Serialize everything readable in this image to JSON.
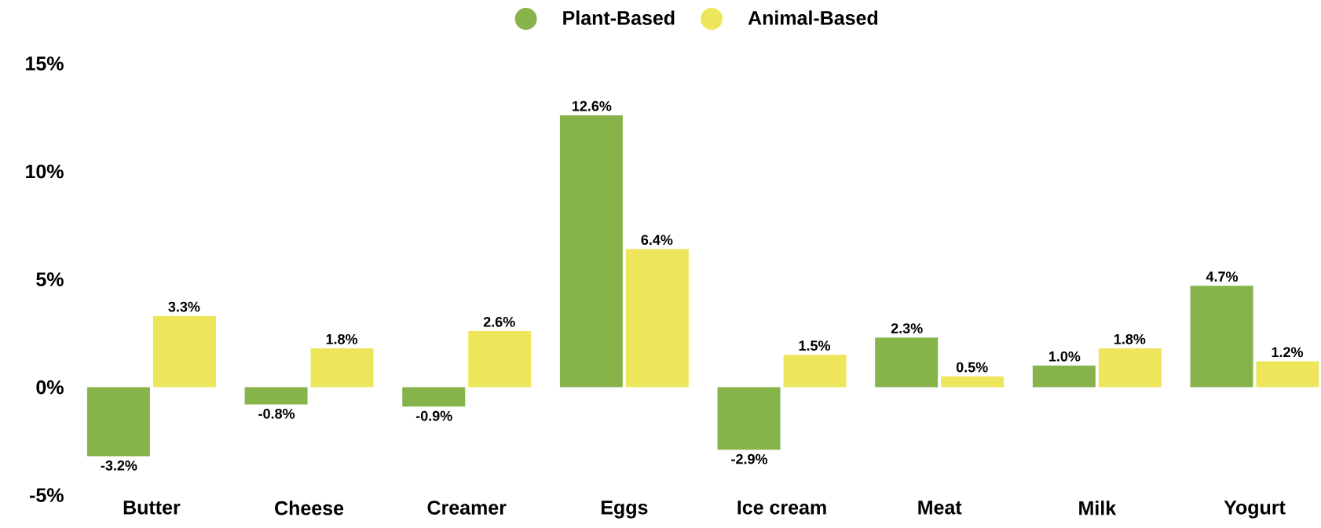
{
  "chart_data": {
    "type": "bar",
    "categories": [
      "Butter",
      "Cheese",
      "Creamer",
      "Eggs",
      "Ice cream",
      "Meat",
      "Milk",
      "Yogurt"
    ],
    "series": [
      {
        "name": "Plant-Based",
        "color": "#86b34a",
        "values": [
          -3.2,
          -0.8,
          -0.9,
          12.6,
          -2.9,
          2.3,
          1.0,
          4.7
        ],
        "value_labels": [
          "-3.2%",
          "-0.8%",
          "-0.9%",
          "12.6%",
          "-2.9%",
          "2.3%",
          "1.0%",
          "4.7%"
        ]
      },
      {
        "name": "Animal-Based",
        "color": "#ede65a",
        "values": [
          3.3,
          1.8,
          2.6,
          6.4,
          1.5,
          0.5,
          1.8,
          1.2
        ],
        "value_labels": [
          "3.3%",
          "1.8%",
          "2.6%",
          "6.4%",
          "1.5%",
          "0.5%",
          "1.8%",
          "1.2%"
        ]
      }
    ],
    "ylim": [
      -5,
      15
    ],
    "yticks": [
      {
        "value": -5,
        "label": "-5%"
      },
      {
        "value": 0,
        "label": "0%"
      },
      {
        "value": 5,
        "label": "5%"
      },
      {
        "value": 10,
        "label": "10%"
      },
      {
        "value": 15,
        "label": "15%"
      }
    ],
    "legend": "top",
    "grid": false
  }
}
